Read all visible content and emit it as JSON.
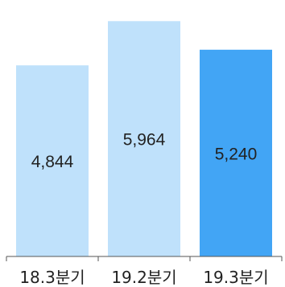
{
  "chart_data": {
    "type": "bar",
    "categories": [
      "18.3분기",
      "19.2분기",
      "19.3분기"
    ],
    "values": [
      4844,
      5964,
      5240
    ],
    "value_labels": [
      "4,844",
      "5,964",
      "5,240"
    ],
    "colors": [
      "#bfe1fb",
      "#bfe1fb",
      "#42a5f5"
    ],
    "axis_color": "#555555",
    "title": "",
    "xlabel": "",
    "ylabel": "",
    "ylim": [
      0,
      6500
    ],
    "grid": false,
    "legend": "none"
  }
}
